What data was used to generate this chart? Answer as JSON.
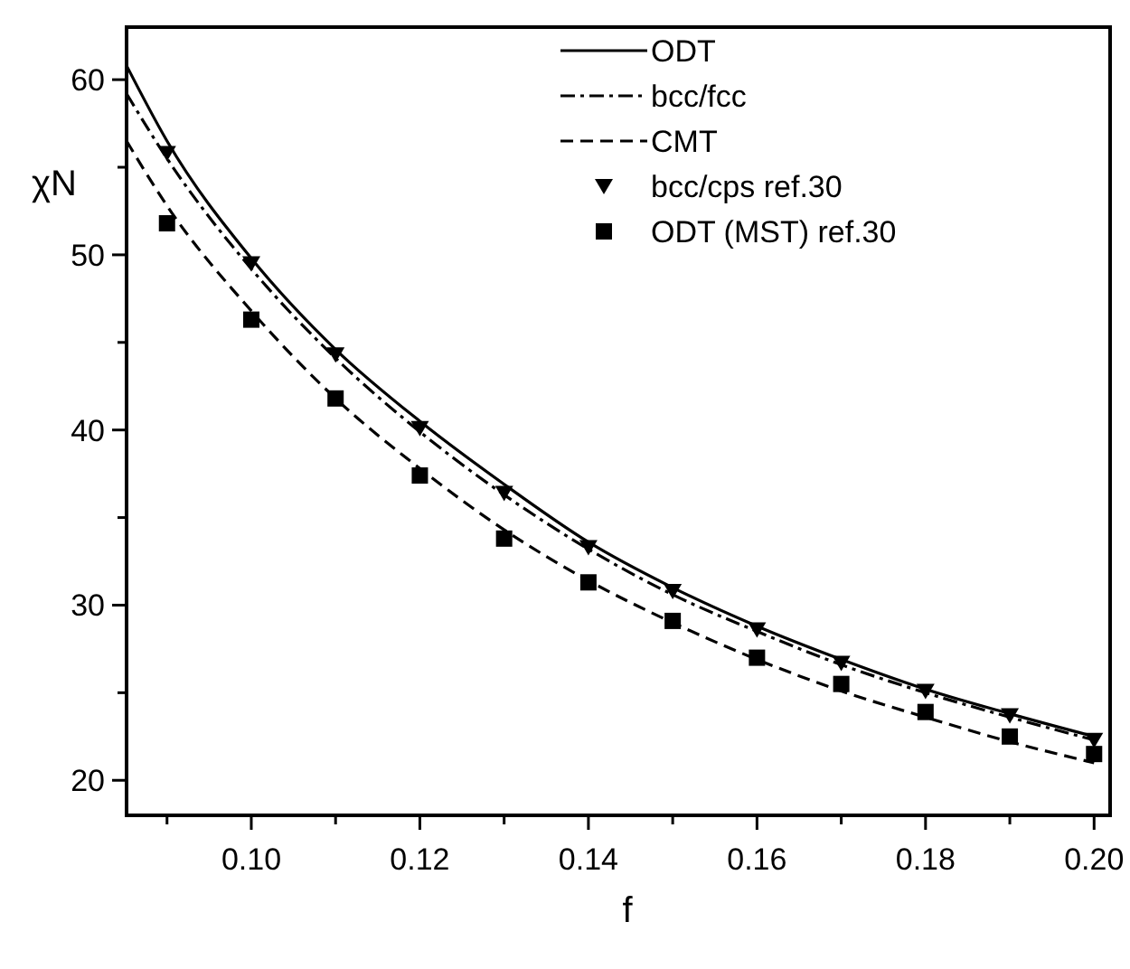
{
  "chart_data": {
    "type": "line",
    "xlabel": "f",
    "ylabel": "χN",
    "xlim": [
      0.0852,
      0.2019
    ],
    "ylim": [
      18,
      63
    ],
    "xticks": [
      {
        "value": 0.09,
        "label": null
      },
      {
        "value": 0.1,
        "label": "0.10"
      },
      {
        "value": 0.11,
        "label": null
      },
      {
        "value": 0.12,
        "label": "0.12"
      },
      {
        "value": 0.13,
        "label": null
      },
      {
        "value": 0.14,
        "label": "0.14"
      },
      {
        "value": 0.15,
        "label": null
      },
      {
        "value": 0.16,
        "label": "0.16"
      },
      {
        "value": 0.17,
        "label": null
      },
      {
        "value": 0.18,
        "label": "0.18"
      },
      {
        "value": 0.19,
        "label": null
      },
      {
        "value": 0.2,
        "label": "0.20"
      }
    ],
    "yticks": [
      20,
      {
        "value": 25,
        "label": null
      },
      30,
      {
        "value": 35,
        "label": null
      },
      40,
      {
        "value": 45,
        "label": null
      },
      50,
      {
        "value": 55,
        "label": null
      },
      60
    ],
    "grid": false,
    "legend": "top right",
    "series": [
      {
        "name": "ODT",
        "color": "#000000",
        "line_style": "solid",
        "marker": "none",
        "x": [
          0.0852,
          0.09,
          0.1,
          0.11,
          0.12,
          0.13,
          0.14,
          0.15,
          0.16,
          0.17,
          0.18,
          0.19,
          0.2
        ],
        "values": [
          60.8,
          56.5,
          49.8,
          44.6,
          40.5,
          36.9,
          33.6,
          31.0,
          28.8,
          26.9,
          25.2,
          23.8,
          22.5
        ]
      },
      {
        "name": "bcc/fcc",
        "color": "#000000",
        "line_style": "dashdot",
        "marker": "none",
        "x": [
          0.0852,
          0.09,
          0.1,
          0.11,
          0.12,
          0.13,
          0.14,
          0.15,
          0.16,
          0.17,
          0.18,
          0.19,
          0.2
        ],
        "values": [
          59.2,
          55.5,
          49.2,
          44.1,
          39.9,
          36.3,
          33.2,
          30.6,
          28.5,
          26.6,
          25.0,
          23.6,
          22.3
        ]
      },
      {
        "name": "CMT",
        "color": "#000000",
        "line_style": "dashed",
        "marker": "none",
        "x": [
          0.0852,
          0.09,
          0.1,
          0.11,
          0.12,
          0.13,
          0.14,
          0.15,
          0.16,
          0.17,
          0.18,
          0.19,
          0.2
        ],
        "values": [
          56.5,
          52.8,
          46.8,
          41.8,
          37.8,
          34.3,
          31.4,
          29.0,
          26.9,
          25.1,
          23.6,
          22.2,
          21.0
        ]
      },
      {
        "name": "bcc/cps ref.30",
        "type": "scatter",
        "color": "#000000",
        "marker": "triangle",
        "x": [
          0.09,
          0.1,
          0.11,
          0.12,
          0.13,
          0.14,
          0.15,
          0.16,
          0.17,
          0.18,
          0.19,
          0.2
        ],
        "values": [
          55.8,
          49.5,
          44.3,
          40.1,
          36.4,
          33.3,
          30.8,
          28.6,
          26.7,
          25.1,
          23.7,
          22.3
        ]
      },
      {
        "name": "ODT (MST) ref.30",
        "type": "scatter",
        "color": "#000000",
        "marker": "square",
        "x": [
          0.09,
          0.1,
          0.11,
          0.12,
          0.13,
          0.14,
          0.15,
          0.16,
          0.17,
          0.18,
          0.19,
          0.2
        ],
        "values": [
          51.8,
          46.3,
          41.8,
          37.4,
          33.8,
          31.3,
          29.1,
          27.0,
          25.5,
          23.9,
          22.5,
          21.5
        ]
      }
    ]
  }
}
